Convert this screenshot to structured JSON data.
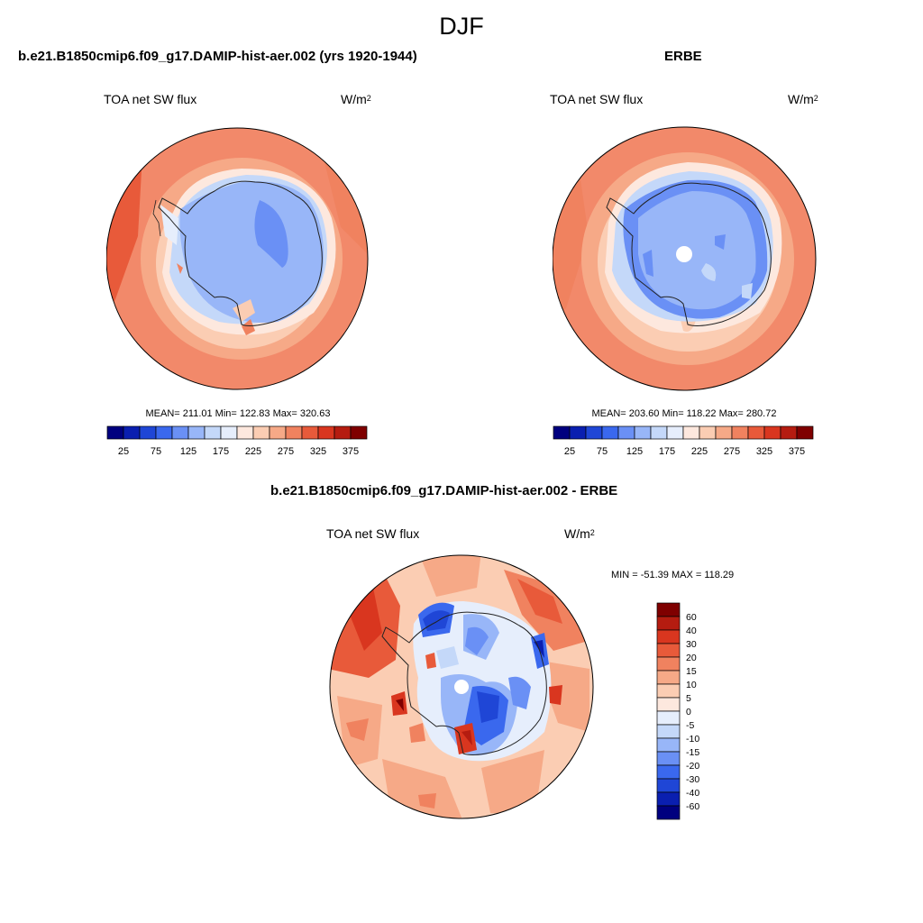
{
  "figure_title": "DJF",
  "panels": [
    {
      "title": "b.e21.B1850cmip6.f09_g17.DAMIP-hist-aer.002 (yrs 1920-1944)",
      "field": "TOA net SW flux",
      "units": "W/m",
      "units_exp": "2",
      "stats": "MEAN= 211.01  Min= 122.83  Max= 320.63"
    },
    {
      "title": "ERBE",
      "field": "TOA net SW flux",
      "units": "W/m",
      "units_exp": "2",
      "stats": "MEAN= 203.60  Min= 118.22  Max= 280.72"
    },
    {
      "title": "b.e21.B1850cmip6.f09_g17.DAMIP-hist-aer.002 - ERBE",
      "field": "TOA net SW flux",
      "units": "W/m",
      "units_exp": "2",
      "stats": "MIN = -51.39 MAX = 118.29"
    }
  ],
  "colorbar_abs": {
    "colors": [
      "#00007f",
      "#0a1fb0",
      "#1f46d6",
      "#3a68ee",
      "#6a90f5",
      "#98b6f8",
      "#c4d8f9",
      "#e6eefc",
      "#fde8de",
      "#fbcdb3",
      "#f6a987",
      "#f0825f",
      "#e85a3a",
      "#d9361f",
      "#b51c10",
      "#7f0000"
    ],
    "labels": [
      "25",
      "75",
      "125",
      "175",
      "225",
      "275",
      "325",
      "375"
    ]
  },
  "colorbar_diff": {
    "colors": [
      "#7f0000",
      "#b51c10",
      "#d9361f",
      "#e85a3a",
      "#f0825f",
      "#f6a987",
      "#fbcdb3",
      "#fde8de",
      "#e6eefc",
      "#c4d8f9",
      "#98b6f8",
      "#6a90f5",
      "#3a68ee",
      "#1f46d6",
      "#0a1fb0",
      "#00007f"
    ],
    "labels": [
      "60",
      "40",
      "30",
      "20",
      "15",
      "10",
      "5",
      "0",
      "-5",
      "-10",
      "-15",
      "-20",
      "-30",
      "-40",
      "-60"
    ]
  }
}
